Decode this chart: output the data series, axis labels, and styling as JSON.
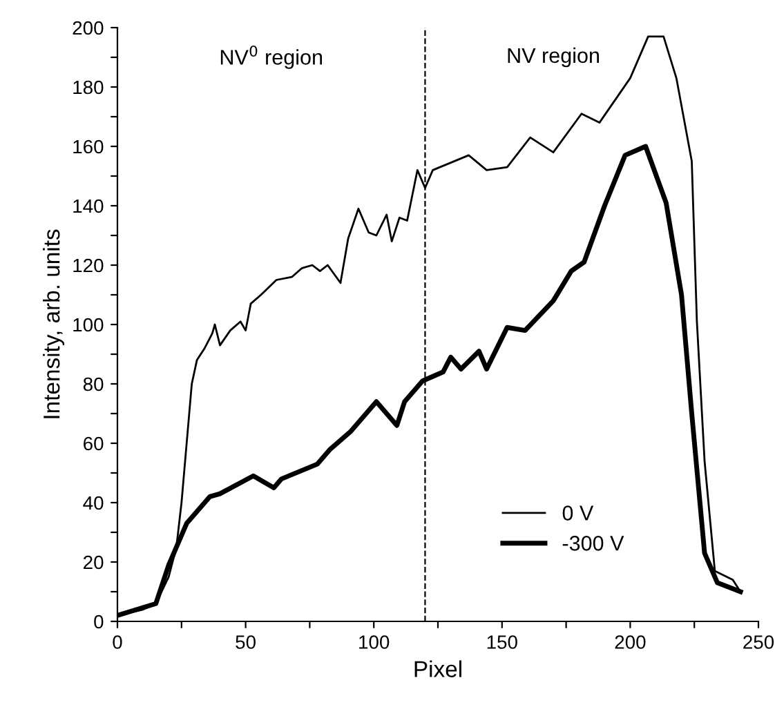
{
  "chart_data": {
    "type": "line",
    "xlabel": "Pixel",
    "ylabel": "Intensity, arb. units",
    "xlim": [
      0,
      250
    ],
    "ylim": [
      0,
      200
    ],
    "xticks": [
      0,
      {
        "value": 25,
        "label": null
      },
      50,
      {
        "value": 75,
        "label": null
      },
      100,
      {
        "value": 125,
        "label": null
      },
      150,
      {
        "value": 175,
        "label": null
      },
      200,
      {
        "value": 225,
        "label": null
      },
      250
    ],
    "yticks": [
      0,
      {
        "value": 10,
        "label": null
      },
      20,
      {
        "value": 30,
        "label": null
      },
      40,
      {
        "value": 50,
        "label": null
      },
      60,
      {
        "value": 70,
        "label": null
      },
      80,
      {
        "value": 90,
        "label": null
      },
      100,
      {
        "value": 110,
        "label": null
      },
      120,
      {
        "value": 130,
        "label": null
      },
      140,
      {
        "value": 150,
        "label": null
      },
      160,
      {
        "value": 170,
        "label": null
      },
      180,
      {
        "value": 190,
        "label": null
      },
      200
    ],
    "grid": false,
    "legend": "bottom right",
    "marker": "none",
    "ref_lines": [
      {
        "axis": "x",
        "value": 120,
        "label": null,
        "color": "#000000",
        "line_style": "dashed"
      }
    ],
    "annotations": [
      "NV$^{0}$ region",
      "NV region"
    ],
    "series": [
      {
        "name": "0 V",
        "color": "#000000",
        "x": [
          0,
          10,
          15,
          20,
          23,
          25,
          27,
          29,
          31,
          34,
          37,
          38,
          40,
          44,
          48,
          50,
          52,
          56,
          62,
          68,
          72,
          76,
          79,
          82,
          87,
          90,
          94,
          98,
          101,
          105,
          107,
          110,
          113,
          117,
          120,
          123,
          137,
          144,
          152,
          161,
          170,
          181,
          188,
          200,
          207,
          213,
          218,
          224,
          226,
          229,
          233,
          240,
          243
        ],
        "values": [
          2,
          4,
          6,
          15,
          25,
          40,
          60,
          80,
          88,
          92,
          97,
          100,
          93,
          98,
          101,
          98,
          107,
          110,
          115,
          116,
          119,
          120,
          118,
          120,
          114,
          129,
          139,
          131,
          130,
          137,
          128,
          136,
          135,
          152,
          146,
          152,
          157,
          152,
          153,
          163,
          158,
          171,
          168,
          183,
          197,
          197,
          183,
          155,
          101,
          54,
          17,
          14,
          10
        ]
      },
      {
        "name": "-300 V",
        "color": "#000000",
        "x": [
          0,
          15,
          20,
          27,
          36,
          40,
          53,
          61,
          64,
          78,
          83,
          91,
          101,
          109,
          112,
          119,
          127,
          130,
          134,
          141,
          144,
          152,
          159,
          170,
          177,
          182,
          190,
          198,
          206,
          214,
          220,
          224,
          229,
          234,
          243
        ],
        "values": [
          2,
          6,
          19,
          33,
          42,
          43,
          49,
          45,
          48,
          53,
          58,
          64,
          74,
          66,
          74,
          81,
          84,
          89,
          85,
          91,
          85,
          99,
          98,
          108,
          118,
          121,
          140,
          157,
          160,
          141,
          110,
          70,
          23,
          13,
          10
        ]
      }
    ]
  }
}
